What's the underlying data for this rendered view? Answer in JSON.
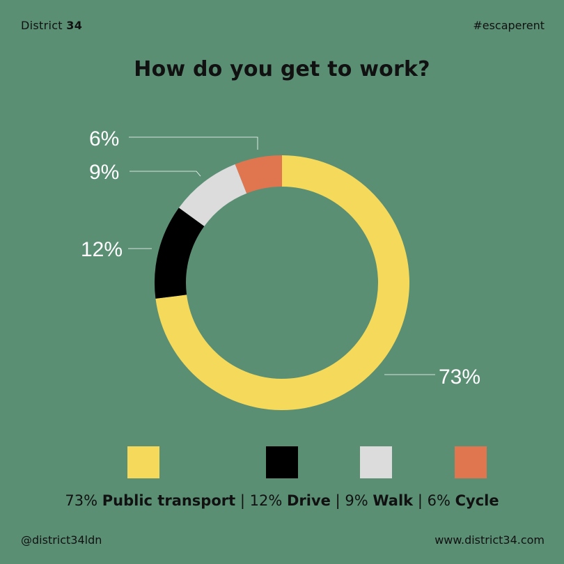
{
  "header": {
    "brand_name": "District",
    "brand_number": "34",
    "hashtag": "#escaperent"
  },
  "footer": {
    "handle": "@district34ldn",
    "website": "www.district34.com"
  },
  "chart_data": {
    "type": "pie",
    "title": "How do you get to work?",
    "donut": true,
    "legend_position": "bottom",
    "categories": [
      "Public transport",
      "Drive",
      "Walk",
      "Cycle"
    ],
    "values": [
      73,
      12,
      9,
      6
    ],
    "data_labels": [
      "73%",
      "12%",
      "9%",
      "6%"
    ],
    "colors": [
      "#f5d95a",
      "#000000",
      "#dcdcdc",
      "#e07650"
    ],
    "separator": "|"
  }
}
